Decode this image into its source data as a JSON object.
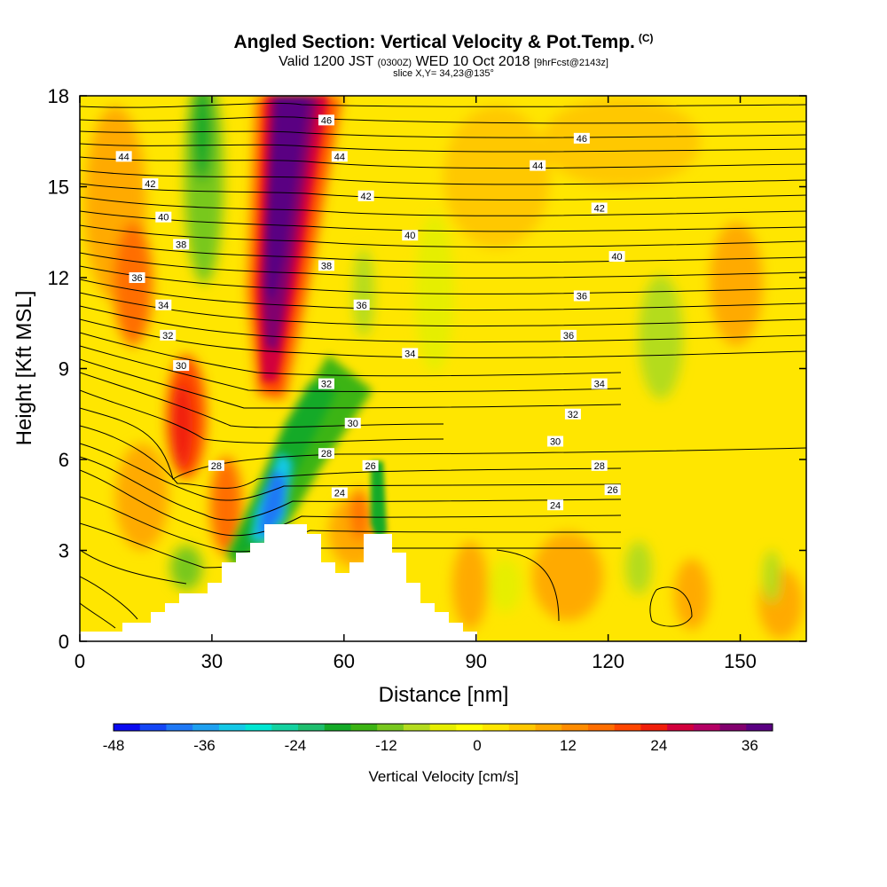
{
  "header": {
    "title": "Angled Section: Vertical Velocity & Pot.Temp.",
    "title_mark": "(C)",
    "valid_prefix": "Valid 1200 JST",
    "valid_utc": "(0300Z)",
    "valid_date": "WED 10 Oct 2018",
    "valid_fcst": "[9hrFcst@2143z]",
    "slice": "slice X,Y= 34,23@135°"
  },
  "chart_data": {
    "type": "heatmap",
    "title": "Angled Section: Vertical Velocity & Pot.Temp.",
    "xlabel": "Distance [nm]",
    "ylabel": "Height [Kft MSL]",
    "xlim": [
      0,
      165
    ],
    "ylim": [
      0,
      18
    ],
    "xticks": [
      "0",
      "30",
      "60",
      "90",
      "120",
      "150"
    ],
    "yticks": [
      "0",
      "3",
      "6",
      "9",
      "12",
      "15",
      "18"
    ],
    "colorbar": {
      "label": "Vertical Velocity [cm/s]",
      "min": -48,
      "max": 39,
      "step": 3,
      "tick_labels": [
        "-48",
        "-36",
        "-24",
        "-12",
        "0",
        "12",
        "24",
        "36"
      ],
      "colors": [
        "#0a0af0",
        "#1446f5",
        "#1e78f5",
        "#1ea0f0",
        "#14c8e6",
        "#00e6d2",
        "#14d2a0",
        "#1ebe6e",
        "#14aa28",
        "#3cb414",
        "#78c81e",
        "#b4dc1e",
        "#e6ee00",
        "#ffff00",
        "#ffe600",
        "#ffc800",
        "#ffaa00",
        "#ff8c00",
        "#ff6e00",
        "#ff4600",
        "#f01e0a",
        "#d2003c",
        "#b40064",
        "#82006e",
        "#5a0082"
      ]
    },
    "overlay": "Potential temperature contours (°C)",
    "contour_labels": [
      {
        "text": "46",
        "x": 56,
        "y": 17.2
      },
      {
        "text": "46",
        "x": 114,
        "y": 16.6
      },
      {
        "text": "44",
        "x": 10,
        "y": 16.0
      },
      {
        "text": "44",
        "x": 59,
        "y": 16.0
      },
      {
        "text": "44",
        "x": 104,
        "y": 15.7
      },
      {
        "text": "42",
        "x": 16,
        "y": 15.1
      },
      {
        "text": "42",
        "x": 65,
        "y": 14.7
      },
      {
        "text": "42",
        "x": 118,
        "y": 14.3
      },
      {
        "text": "40",
        "x": 19,
        "y": 14.0
      },
      {
        "text": "40",
        "x": 75,
        "y": 13.4
      },
      {
        "text": "40",
        "x": 122,
        "y": 12.7
      },
      {
        "text": "38",
        "x": 23,
        "y": 13.1
      },
      {
        "text": "38",
        "x": 56,
        "y": 12.4
      },
      {
        "text": "36",
        "x": 13,
        "y": 12.0
      },
      {
        "text": "36",
        "x": 64,
        "y": 11.1
      },
      {
        "text": "36",
        "x": 114,
        "y": 11.4
      },
      {
        "text": "34",
        "x": 19,
        "y": 11.1
      },
      {
        "text": "34",
        "x": 75,
        "y": 9.5
      },
      {
        "text": "36",
        "x": 111,
        "y": 10.1
      },
      {
        "text": "32",
        "x": 20,
        "y": 10.1
      },
      {
        "text": "32",
        "x": 56,
        "y": 8.5
      },
      {
        "text": "34",
        "x": 118,
        "y": 8.5
      },
      {
        "text": "30",
        "x": 23,
        "y": 9.1
      },
      {
        "text": "30",
        "x": 62,
        "y": 7.2
      },
      {
        "text": "32",
        "x": 112,
        "y": 7.5
      },
      {
        "text": "30",
        "x": 108,
        "y": 6.6
      },
      {
        "text": "28",
        "x": 56,
        "y": 6.2
      },
      {
        "text": "28",
        "x": 31,
        "y": 5.8
      },
      {
        "text": "26",
        "x": 66,
        "y": 5.8
      },
      {
        "text": "28",
        "x": 118,
        "y": 5.8
      },
      {
        "text": "24",
        "x": 59,
        "y": 4.9
      },
      {
        "text": "26",
        "x": 121,
        "y": 5.0
      },
      {
        "text": "24",
        "x": 108,
        "y": 4.5
      }
    ]
  }
}
